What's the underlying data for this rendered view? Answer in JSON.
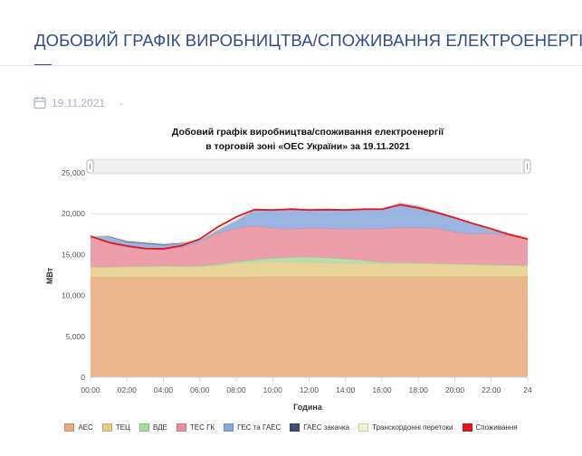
{
  "page": {
    "title": "ДОБОВИЙ ГРАФІК ВИРОБНИЦТВА/СПОЖИВАННЯ ЕЛЕКТРОЕНЕРГІЇ",
    "date": "19.11.2021",
    "date_icon": "calendar-icon",
    "date_dropdown_icon": "chevron-down-icon"
  },
  "colors": {
    "accent": "#2f4d8c",
    "aes": "#e9a97a",
    "tec": "#e5cd88",
    "vde": "#a8d9a5",
    "tes_gk": "#e98e9b",
    "ges_gaes": "#88a8dc",
    "gaes_zakachka": "#3e4f6e",
    "transkordonni": "#f3f3cc",
    "spozhyvannia": "#e8141c"
  },
  "chart_data": {
    "type": "area",
    "title": "Добовий графік виробництва/споживання електроенергії",
    "subtitle": "в торговій зоні «ОЕС України» за 19.11.2021",
    "xlabel": "Година",
    "ylabel": "МВт",
    "ylim": [
      0,
      25000
    ],
    "xlim": [
      0,
      24
    ],
    "stacked": true,
    "grid": true,
    "legend_position": "bottom",
    "x_ticks": [
      "00:00",
      "02:00",
      "04:00",
      "06:00",
      "08:00",
      "10:00",
      "12:00",
      "14:00",
      "16:00",
      "18:00",
      "20:00",
      "22:00",
      "24"
    ],
    "y_ticks": [
      "0",
      "5,000",
      "10,000",
      "15,000",
      "20,000",
      "25,000"
    ],
    "x": [
      0,
      1,
      2,
      3,
      4,
      5,
      6,
      7,
      8,
      9,
      10,
      11,
      12,
      13,
      14,
      15,
      16,
      17,
      18,
      19,
      20,
      21,
      22,
      23,
      24
    ],
    "series": [
      {
        "name": "АЕС",
        "color": "#e9a97a",
        "values": [
          12250,
          12250,
          12250,
          12250,
          12250,
          12250,
          12250,
          12250,
          12250,
          12250,
          12300,
          12300,
          12300,
          12300,
          12300,
          12300,
          12300,
          12300,
          12300,
          12300,
          12300,
          12300,
          12300,
          12300,
          12300
        ]
      },
      {
        "name": "ТЕЦ",
        "color": "#e5cd88",
        "values": [
          1200,
          1200,
          1250,
          1250,
          1300,
          1250,
          1250,
          1400,
          1650,
          1800,
          1850,
          1800,
          1750,
          1700,
          1650,
          1650,
          1550,
          1600,
          1600,
          1550,
          1500,
          1450,
          1400,
          1350,
          1300
        ]
      },
      {
        "name": "ВДЕ",
        "color": "#a8d9a5",
        "values": [
          20,
          30,
          40,
          50,
          60,
          70,
          80,
          150,
          200,
          300,
          400,
          550,
          650,
          600,
          500,
          350,
          200,
          120,
          80,
          60,
          60,
          60,
          60,
          60,
          60
        ]
      },
      {
        "name": "ТЕС ГК",
        "color": "#e98e9b",
        "values": [
          3780,
          2900,
          2350,
          2050,
          2050,
          2300,
          2950,
          3850,
          4100,
          4150,
          3700,
          3450,
          3550,
          3600,
          3650,
          3850,
          4100,
          4300,
          4300,
          4300,
          3900,
          3700,
          3800,
          3600,
          3300
        ]
      },
      {
        "name": "ГЕС та ГАЕС",
        "color": "#88a8dc",
        "values": [
          0,
          800,
          650,
          750,
          500,
          500,
          300,
          400,
          1000,
          2000,
          2200,
          2500,
          2300,
          2300,
          2400,
          2400,
          2400,
          3000,
          2700,
          2100,
          1700,
          1300,
          500,
          200,
          100
        ]
      },
      {
        "name": "ГАЕС закачка",
        "color": "#3e4f6e",
        "values": [
          0,
          100,
          150,
          150,
          150,
          100,
          0,
          0,
          0,
          0,
          0,
          0,
          0,
          0,
          0,
          0,
          0,
          0,
          0,
          0,
          0,
          0,
          0,
          0,
          0
        ]
      },
      {
        "name": "Транскордонні перетоки",
        "color": "#f3f3cc",
        "values": [
          0,
          0,
          0,
          0,
          0,
          0,
          0,
          0,
          0,
          0,
          0,
          0,
          0,
          0,
          0,
          0,
          0,
          0,
          0,
          0,
          0,
          0,
          0,
          0,
          0
        ]
      },
      {
        "name": "Споживання",
        "color": "#e8141c",
        "type": "line",
        "values": [
          17250,
          16500,
          16050,
          15750,
          15700,
          16100,
          16900,
          18400,
          19600,
          20500,
          20450,
          20550,
          20450,
          20500,
          20450,
          20550,
          20550,
          21100,
          20700,
          20150,
          19500,
          18800,
          18150,
          17450,
          16900
        ]
      }
    ]
  }
}
